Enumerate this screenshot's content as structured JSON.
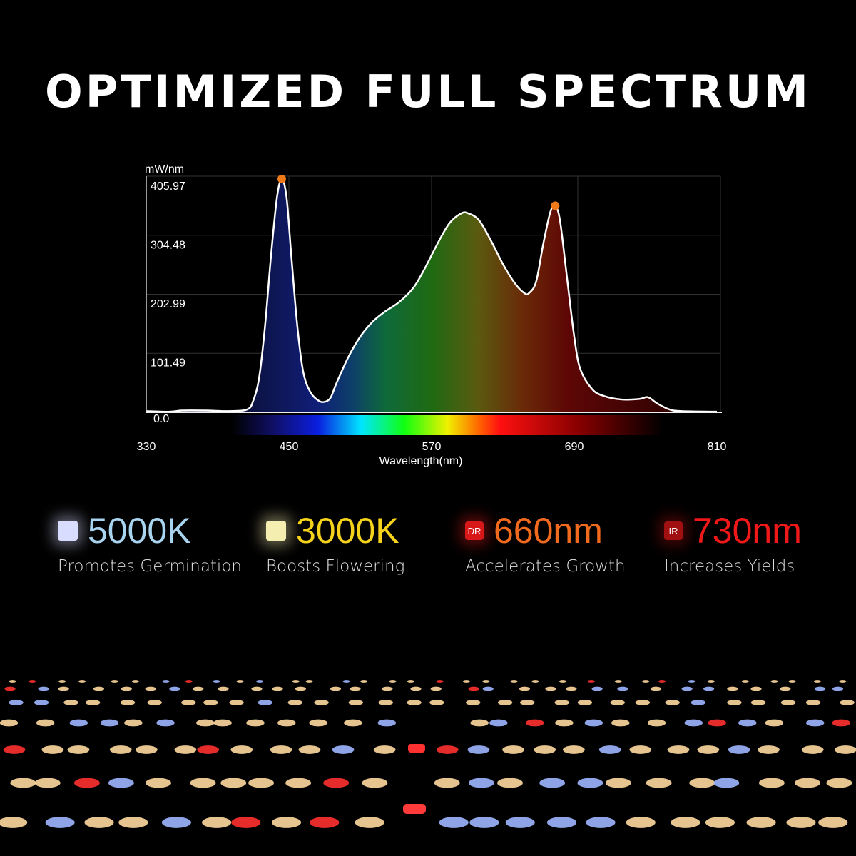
{
  "title": "OPTIMIZED FULL SPECTRUM",
  "chart_data": {
    "type": "area",
    "ylabel": "mW/nm",
    "xlabel": "Wavelength(nm)",
    "xlim": [
      330,
      810
    ],
    "ylim": [
      0,
      405.97
    ],
    "x_ticks": [
      "330",
      "450",
      "570",
      "690",
      "810"
    ],
    "y_ticks": [
      "405.97",
      "304.48",
      "202.99",
      "101.49",
      "0.0"
    ],
    "grid": true,
    "peak_markers": [
      [
        444,
        400
      ],
      [
        674,
        354
      ]
    ],
    "marker_color": "#f07a1a",
    "line_color": "#ffffff",
    "points": [
      [
        330,
        2
      ],
      [
        350,
        1
      ],
      [
        360,
        3
      ],
      [
        380,
        3
      ],
      [
        400,
        2
      ],
      [
        415,
        5
      ],
      [
        420,
        20
      ],
      [
        425,
        60
      ],
      [
        430,
        150
      ],
      [
        435,
        270
      ],
      [
        440,
        370
      ],
      [
        444,
        400
      ],
      [
        448,
        370
      ],
      [
        452,
        270
      ],
      [
        457,
        150
      ],
      [
        462,
        70
      ],
      [
        468,
        35
      ],
      [
        475,
        20
      ],
      [
        480,
        18
      ],
      [
        485,
        25
      ],
      [
        490,
        50
      ],
      [
        500,
        95
      ],
      [
        510,
        130
      ],
      [
        520,
        155
      ],
      [
        530,
        172
      ],
      [
        543,
        190
      ],
      [
        555,
        215
      ],
      [
        565,
        250
      ],
      [
        575,
        290
      ],
      [
        585,
        325
      ],
      [
        595,
        342
      ],
      [
        601,
        342
      ],
      [
        610,
        330
      ],
      [
        620,
        295
      ],
      [
        630,
        255
      ],
      [
        640,
        222
      ],
      [
        648,
        205
      ],
      [
        652,
        205
      ],
      [
        658,
        225
      ],
      [
        664,
        290
      ],
      [
        670,
        345
      ],
      [
        674,
        354
      ],
      [
        678,
        330
      ],
      [
        684,
        230
      ],
      [
        690,
        130
      ],
      [
        695,
        75
      ],
      [
        705,
        40
      ],
      [
        715,
        28
      ],
      [
        730,
        22
      ],
      [
        745,
        23
      ],
      [
        752,
        26
      ],
      [
        760,
        15
      ],
      [
        770,
        5
      ],
      [
        780,
        2
      ],
      [
        810,
        1
      ]
    ]
  },
  "features": [
    {
      "chip": "",
      "value": "5000K",
      "label": "Promotes Germination",
      "color": "#a9d4f0",
      "chip_color": "#d8dcff"
    },
    {
      "chip": "",
      "value": "3000K",
      "label": "Boosts Flowering",
      "color": "#f5d21c",
      "chip_color": "#f4eeb0"
    },
    {
      "chip": "DR",
      "value": "660nm",
      "label": "Accelerates Growth",
      "color": "#f26a1e",
      "chip_color": "#d81818"
    },
    {
      "chip": "IR",
      "value": "730nm",
      "label": "Increases Yields",
      "color": "#f01818",
      "chip_color": "#a01010"
    }
  ]
}
